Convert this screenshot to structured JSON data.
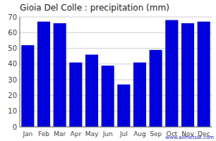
{
  "chart_data": {
    "type": "bar",
    "title": "Gioia Del Colle : precipitation (mm)",
    "categories": [
      "Jan",
      "Feb",
      "Mar",
      "Apr",
      "May",
      "Jun",
      "Jul",
      "Aug",
      "Sep",
      "Oct",
      "Nov",
      "Dec"
    ],
    "values": [
      52,
      67,
      66,
      41,
      46,
      39,
      27,
      41,
      49,
      68,
      66,
      67
    ],
    "color": "#0000dd",
    "ylim": [
      0,
      70
    ],
    "yticks": [
      0,
      10,
      20,
      30,
      40,
      50,
      60,
      70
    ],
    "grid": true,
    "annotations": [
      "www.allmetsat.com"
    ]
  }
}
